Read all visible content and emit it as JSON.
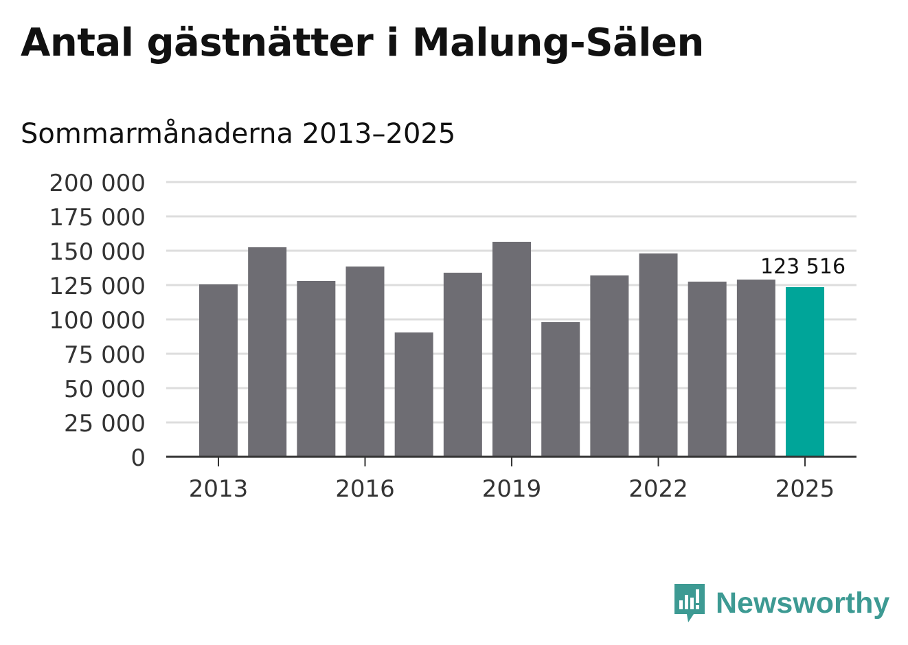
{
  "header": {
    "title": "Antal gästnätter i Malung-Sälen",
    "subtitle": "Sommarmånaderna 2013–2025"
  },
  "brand": {
    "name": "Newsworthy",
    "color": "#3d9a93"
  },
  "colors": {
    "bar": "#6e6d73",
    "highlight": "#00a599",
    "grid": "#dddddd",
    "axis": "#333333"
  },
  "chart_data": {
    "type": "bar",
    "categories": [
      "2013",
      "2014",
      "2015",
      "2016",
      "2017",
      "2018",
      "2019",
      "2020",
      "2021",
      "2022",
      "2023",
      "2024",
      "2025"
    ],
    "values": [
      125500,
      152500,
      128000,
      138500,
      90500,
      134000,
      156500,
      98000,
      132000,
      148000,
      127500,
      129000,
      123516
    ],
    "highlight_index": 12,
    "annotation": {
      "index": 12,
      "text": "123 516"
    },
    "x_tick_labels": [
      "2013",
      "2016",
      "2019",
      "2022",
      "2025"
    ],
    "y_ticks": [
      0,
      25000,
      50000,
      75000,
      100000,
      125000,
      150000,
      175000,
      200000
    ],
    "y_tick_labels": [
      "0",
      "25 000",
      "50 000",
      "75 000",
      "100 000",
      "125 000",
      "150 000",
      "175 000",
      "200 000"
    ],
    "ylim": [
      0,
      200000
    ],
    "grid": true
  }
}
